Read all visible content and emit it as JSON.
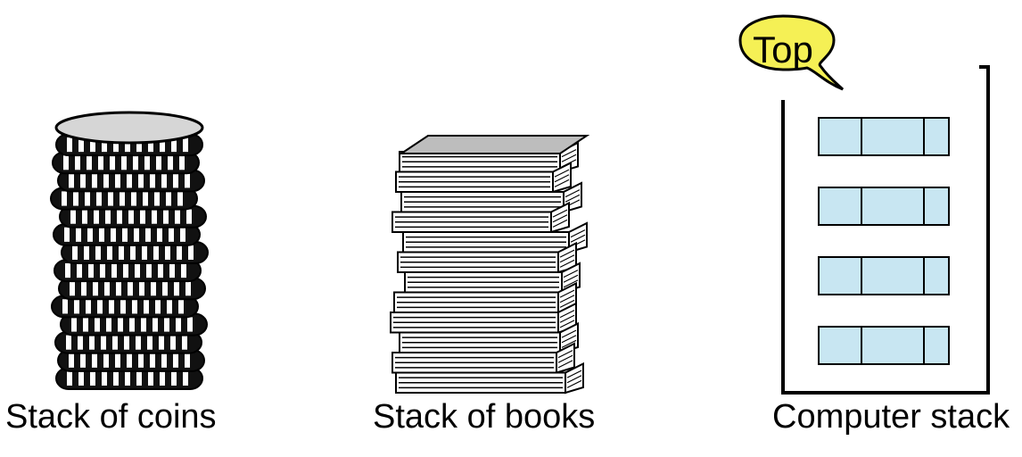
{
  "captions": {
    "coins": "Stack of coins",
    "books": "Stack of books",
    "computer": "Computer stack"
  },
  "callout": {
    "label": "Top"
  },
  "colors": {
    "element_fill": "#c8e6f2",
    "callout_fill": "#f5f055",
    "book_cover": "#bdbdbd",
    "coin_face": "#d6d6d6"
  },
  "stack_elements": 4,
  "coin_count": 14,
  "book_count": 12
}
